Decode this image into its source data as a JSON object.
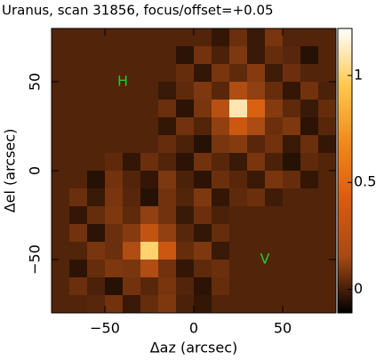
{
  "chart_data": {
    "type": "heatmap",
    "title": "Uranus, scan 31856, focus/offset=+0.05",
    "xlabel": "Δaz (arcsec)",
    "ylabel": "Δel (arcsec)",
    "x": [
      -75,
      -65,
      -55,
      -45,
      -35,
      -25,
      -15,
      -5,
      5,
      15,
      25,
      35,
      45,
      55,
      65,
      75
    ],
    "y": [
      75,
      65,
      55,
      45,
      35,
      25,
      15,
      5,
      -5,
      -15,
      -25,
      -35,
      -45,
      -55,
      -65,
      -75
    ],
    "z": [
      [
        0.02,
        0.02,
        0.02,
        0.02,
        0.02,
        0.02,
        0.02,
        0.02,
        0.02,
        -0.03,
        0.06,
        -0.02,
        0.08,
        0.02,
        0.02,
        0.02
      ],
      [
        0.02,
        0.02,
        0.02,
        0.02,
        0.02,
        0.02,
        0.02,
        -0.04,
        0.07,
        0.01,
        0.09,
        -0.02,
        0.05,
        0.03,
        -0.05,
        0.02
      ],
      [
        0.02,
        0.02,
        0.02,
        0.02,
        0.02,
        0.02,
        0.02,
        0.05,
        -0.03,
        0.08,
        0.04,
        0.1,
        -0.01,
        0.06,
        0.02,
        0.02
      ],
      [
        0.02,
        0.02,
        0.02,
        0.02,
        0.02,
        0.02,
        -0.02,
        0.04,
        0.09,
        0.03,
        0.2,
        0.12,
        0.05,
        -0.03,
        0.07,
        0.01
      ],
      [
        0.02,
        0.02,
        0.02,
        0.02,
        0.02,
        0.02,
        0.06,
        -0.04,
        0.08,
        0.25,
        1.1,
        0.45,
        0.1,
        0.04,
        -0.02,
        0.05
      ],
      [
        0.02,
        0.02,
        0.02,
        0.02,
        0.02,
        0.02,
        -0.03,
        0.07,
        0.02,
        0.12,
        0.35,
        0.18,
        0.06,
        0.09,
        -0.04,
        0.03
      ],
      [
        0.02,
        0.02,
        0.02,
        0.02,
        0.02,
        0.02,
        0.05,
        0.01,
        -0.05,
        0.08,
        0.1,
        0.03,
        0.07,
        -0.02,
        0.06,
        -0.03
      ],
      [
        0.02,
        0.02,
        0.02,
        0.04,
        -0.03,
        0.06,
        0.02,
        -0.04,
        0.07,
        0.03,
        -0.02,
        0.08,
        0.01,
        -0.05,
        0.04,
        0.02
      ],
      [
        0.02,
        0.02,
        -0.05,
        0.07,
        0.02,
        -0.03,
        0.09,
        0.01,
        -0.04,
        0.06,
        0.03,
        -0.02,
        0.08,
        0.05,
        -0.03,
        0.02
      ],
      [
        0.02,
        0.06,
        -0.02,
        0.08,
        0.03,
        -0.05,
        0.07,
        0.02,
        0.09,
        -0.03,
        0.04,
        0.06,
        -0.01,
        0.02,
        0.02,
        0.02
      ],
      [
        0.02,
        -0.03,
        0.05,
        0.09,
        0.04,
        0.12,
        0.07,
        -0.02,
        0.06,
        0.01,
        0.02,
        0.02,
        0.02,
        0.02,
        0.02,
        0.02
      ],
      [
        0.02,
        0.07,
        -0.04,
        0.06,
        0.1,
        0.3,
        0.12,
        0.03,
        -0.03,
        0.05,
        0.02,
        0.02,
        0.02,
        0.02,
        0.02,
        0.02
      ],
      [
        0.02,
        0.02,
        0.08,
        0.06,
        0.2,
        1.0,
        0.35,
        0.05,
        0.09,
        -0.02,
        0.02,
        0.02,
        0.02,
        0.02,
        0.02,
        0.02
      ],
      [
        0.02,
        -0.04,
        0.05,
        0.09,
        0.08,
        0.2,
        0.07,
        -0.03,
        0.04,
        0.06,
        0.02,
        0.02,
        0.02,
        0.02,
        0.02,
        0.02
      ],
      [
        0.02,
        0.06,
        0.01,
        -0.05,
        0.07,
        0.03,
        0.08,
        0.02,
        -0.04,
        0.05,
        0.02,
        0.02,
        0.02,
        0.02,
        0.02,
        0.02
      ],
      [
        0.02,
        0.02,
        0.03,
        0.07,
        -0.02,
        0.05,
        0.09,
        0.01,
        -0.03,
        0.02,
        0.02,
        0.02,
        0.02,
        0.02,
        0.02,
        0.02
      ]
    ],
    "xlim": [
      -80,
      80
    ],
    "ylim": [
      -80,
      80
    ],
    "xticks": [
      {
        "value": -50,
        "label": "−50"
      },
      0,
      50
    ],
    "yticks": [
      {
        "value": -50,
        "label": "−50"
      },
      0,
      50
    ],
    "clim": [
      -0.11,
      1.22
    ],
    "cticks": [
      0,
      0.5,
      1
    ],
    "colormap": [
      "#000000",
      "#a84a14",
      "#d85c10",
      "#f08a20",
      "#ffc850",
      "#ffffff"
    ],
    "annotations": [
      {
        "text": "H",
        "x": -40,
        "y": 50,
        "color": "#22cc22"
      },
      {
        "text": "V",
        "x": 40,
        "y": -50,
        "color": "#22cc22"
      }
    ]
  }
}
